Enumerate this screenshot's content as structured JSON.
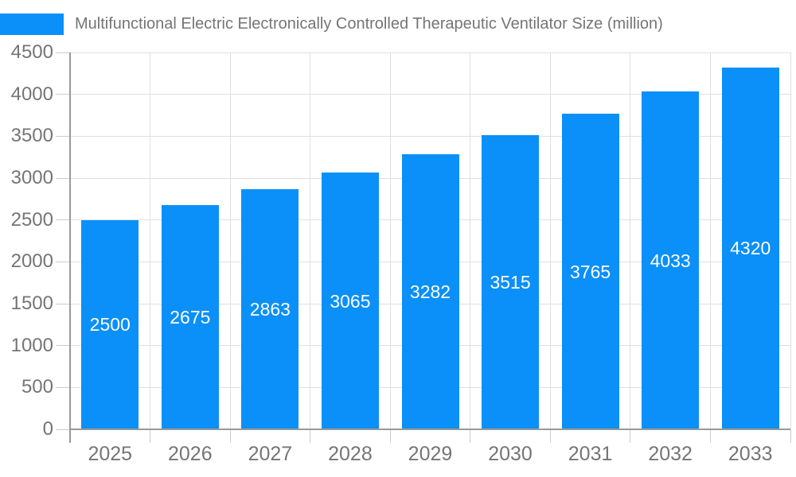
{
  "legend": {
    "position": "top-left"
  },
  "chart_data": {
    "type": "bar",
    "title": "Multifunctional Electric Electronically Controlled Therapeutic Ventilator Size (million)",
    "categories": [
      "2025",
      "2026",
      "2027",
      "2028",
      "2029",
      "2030",
      "2031",
      "2032",
      "2033"
    ],
    "values": [
      2500,
      2675,
      2863,
      3065,
      3282,
      3515,
      3765,
      4033,
      4320
    ],
    "xlabel": "",
    "ylabel": "",
    "ylim": [
      0,
      4500
    ],
    "ytick_step": 500,
    "grid": true,
    "legend_position": "top-left",
    "colors": {
      "bar": "#0a90f8",
      "bar_label": "#ffffff",
      "axis_text": "#757575",
      "axis_line": "#999999",
      "gridline": "#e0e0e0",
      "tick": "#cccccc",
      "background": "#ffffff"
    }
  }
}
